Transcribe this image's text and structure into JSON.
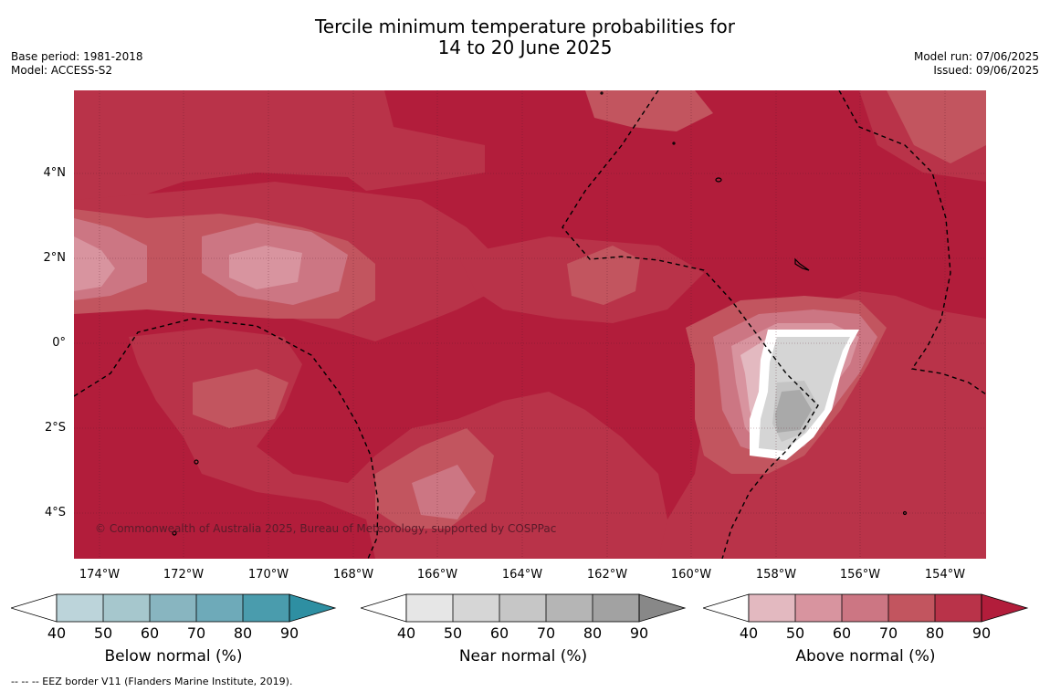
{
  "header": {
    "title_line1": "Tercile minimum temperature probabilities for",
    "title_line2": "14 to 20 June 2025",
    "base_period": "Base period: 1981-2018",
    "model": "Model: ACCESS-S2",
    "model_run": "Model run: 07/06/2025",
    "issued": "Issued: 09/06/2025"
  },
  "map": {
    "latitude_labels": [
      "4°N",
      "2°N",
      "0°",
      "2°S",
      "4°S"
    ],
    "longitude_labels": [
      "174°W",
      "172°W",
      "170°W",
      "168°W",
      "166°W",
      "164°W",
      "162°W",
      "160°W",
      "158°W",
      "156°W",
      "154°W"
    ],
    "copyright": "© Commonwealth of Australia 2025, Bureau of Meteorology, supported by COSPPac",
    "colors": {
      "above_40": "#e3b9c0",
      "above_50": "#d8949f",
      "above_60": "#cc7683",
      "above_70": "#c2555f",
      "above_80": "#b93349",
      "above_90": "#b21d3b",
      "near_50": "#d5d5d5",
      "near_60": "#c4c4c4",
      "near_70": "#a9a9a9"
    }
  },
  "legends": [
    {
      "label": "Below normal (%)",
      "ticks": [
        "40",
        "50",
        "60",
        "70",
        "80",
        "90"
      ],
      "colors": [
        "#bcd4da",
        "#a6c7cd",
        "#88b5c0",
        "#6eaab9",
        "#4a9cad",
        "#2e8fa2"
      ]
    },
    {
      "label": "Near normal (%)",
      "ticks": [
        "40",
        "50",
        "60",
        "70",
        "80",
        "90"
      ],
      "colors": [
        "#e6e6e6",
        "#d6d6d6",
        "#c6c6c6",
        "#b5b5b5",
        "#a2a2a2",
        "#888888"
      ]
    },
    {
      "label": "Above normal (%)",
      "ticks": [
        "40",
        "50",
        "60",
        "70",
        "80",
        "90"
      ],
      "colors": [
        "#e3b9c0",
        "#d8949f",
        "#cc7683",
        "#c2555f",
        "#b93349",
        "#b21d3b"
      ]
    }
  ],
  "footnote": "-- -- -- EEZ border V11 (Flanders Marine Institute, 2019)."
}
